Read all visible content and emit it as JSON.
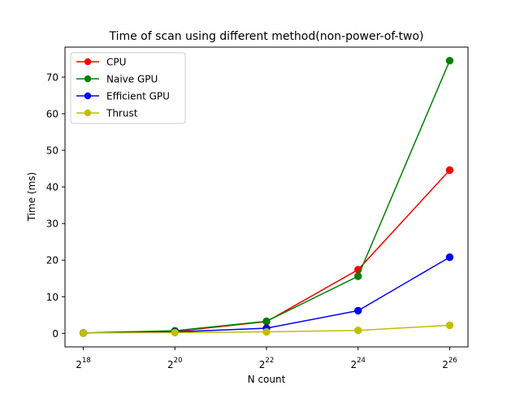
{
  "chart_data": {
    "type": "line",
    "title": "Time of scan using different method(non-power-of-two)",
    "xlabel": "N count",
    "ylabel": "Time (ms)",
    "x": [
      18,
      20,
      22,
      24,
      26
    ],
    "x_scale": "log2",
    "x_tick_labels": [
      {
        "base": "2",
        "exp": "18"
      },
      {
        "base": "2",
        "exp": "20"
      },
      {
        "base": "2",
        "exp": "22"
      },
      {
        "base": "2",
        "exp": "24"
      },
      {
        "base": "2",
        "exp": "26"
      }
    ],
    "xlim": [
      17.6,
      26.4
    ],
    "ylim": [
      -3.7,
      78.2
    ],
    "y_ticks": [
      0,
      10,
      20,
      30,
      40,
      50,
      60,
      70
    ],
    "grid": false,
    "legend_position": "top-left",
    "series": [
      {
        "name": "CPU",
        "color": "#ff0000",
        "values": [
          0.1,
          0.5,
          3.2,
          17.4,
          44.6
        ]
      },
      {
        "name": "Naive GPU",
        "color": "#008000",
        "values": [
          0.1,
          0.7,
          3.3,
          15.6,
          74.5
        ]
      },
      {
        "name": "Efficient GPU",
        "color": "#0000ff",
        "values": [
          0.1,
          0.4,
          1.4,
          6.2,
          20.8
        ]
      },
      {
        "name": "Thrust",
        "color": "#bfbf00",
        "values": [
          0.1,
          0.2,
          0.4,
          0.8,
          2.2
        ]
      }
    ]
  }
}
